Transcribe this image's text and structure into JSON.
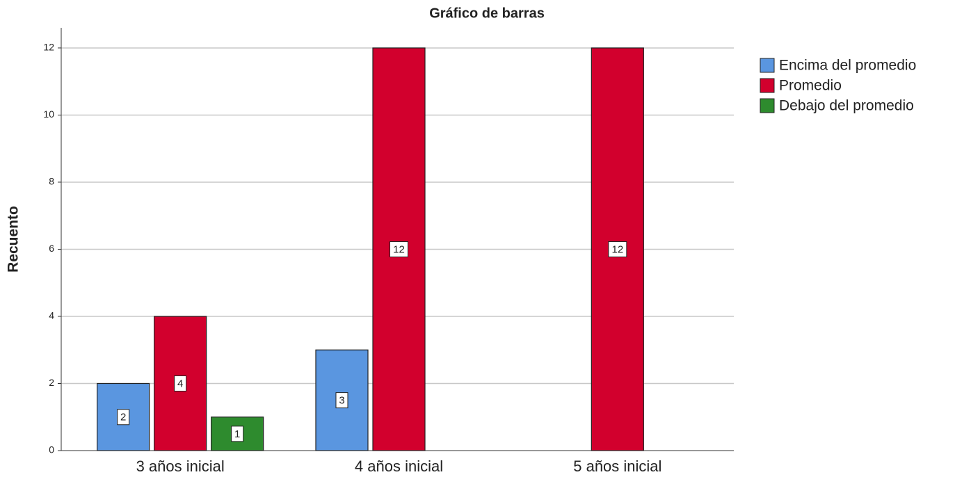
{
  "chart_data": {
    "type": "bar",
    "title": "Gráfico de barras",
    "y_label": "Recuento",
    "categories": [
      "3 años inicial",
      "4 años inicial",
      "5 años inicial"
    ],
    "series": [
      {
        "name": "Encima del promedio",
        "color": "#5a96e0",
        "values": [
          2,
          3,
          null
        ]
      },
      {
        "name": "Promedio",
        "color": "#d2002d",
        "values": [
          4,
          12,
          12
        ]
      },
      {
        "name": "Debajo del promedio",
        "color": "#2e8b2e",
        "values": [
          1,
          null,
          null
        ]
      }
    ],
    "ylim": [
      0,
      12.6
    ],
    "yticks": [
      0,
      2,
      4,
      6,
      8,
      10,
      12
    ],
    "grid": true,
    "legend": "right"
  }
}
